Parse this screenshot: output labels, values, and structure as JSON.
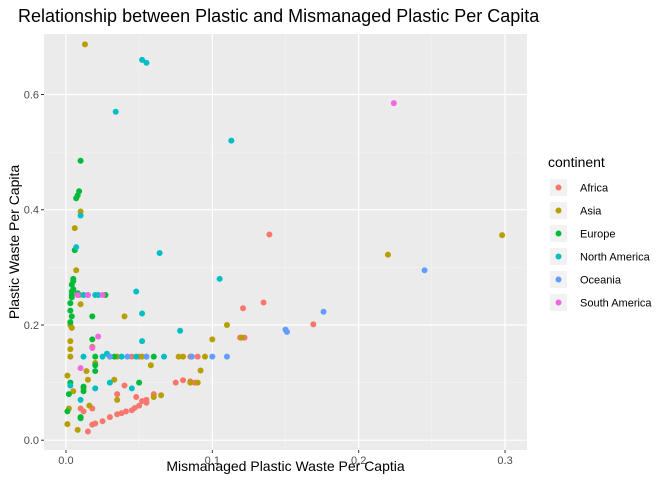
{
  "chart_data": {
    "type": "scatter",
    "title": "Relationship between Plastic and Mismanaged Plastic Per Capita",
    "xlabel": "Mismanaged Plastic Waste Per Captia",
    "ylabel": "Plastic Waste Per Capita",
    "xlim": [
      -0.015,
      0.315
    ],
    "ylim": [
      -0.017,
      0.705
    ],
    "x_ticks": [
      0.0,
      0.1,
      0.2,
      0.3
    ],
    "x_tick_labels": [
      "0.0",
      "0.1",
      "0.2",
      "0.3"
    ],
    "y_ticks": [
      0.0,
      0.2,
      0.4,
      0.6
    ],
    "y_tick_labels": [
      "0.0",
      "0.2",
      "0.4",
      "0.6"
    ],
    "grid": true,
    "legend": {
      "title": "continent",
      "position": "right"
    },
    "series": [
      {
        "name": "Africa",
        "color": "#F8766D",
        "points": [
          [
            0.139,
            0.357
          ],
          [
            0.135,
            0.239
          ],
          [
            0.121,
            0.229
          ],
          [
            0.169,
            0.201
          ],
          [
            0.119,
            0.178
          ],
          [
            0.122,
            0.178
          ],
          [
            0.02,
            0.029
          ],
          [
            0.025,
            0.033
          ],
          [
            0.03,
            0.04
          ],
          [
            0.035,
            0.045
          ],
          [
            0.038,
            0.047
          ],
          [
            0.041,
            0.05
          ],
          [
            0.045,
            0.052
          ],
          [
            0.047,
            0.056
          ],
          [
            0.05,
            0.06
          ],
          [
            0.052,
            0.068
          ],
          [
            0.055,
            0.07
          ],
          [
            0.048,
            0.075
          ],
          [
            0.055,
            0.065
          ],
          [
            0.06,
            0.08
          ],
          [
            0.075,
            0.1
          ],
          [
            0.08,
            0.104
          ],
          [
            0.085,
            0.102
          ],
          [
            0.088,
            0.1
          ],
          [
            0.015,
            0.015
          ],
          [
            0.018,
            0.027
          ],
          [
            0.012,
            0.05
          ],
          [
            0.01,
            0.055
          ],
          [
            0.035,
            0.08
          ],
          [
            0.04,
            0.095
          ],
          [
            0.045,
            0.145
          ],
          [
            0.05,
            0.145
          ],
          [
            0.055,
            0.145
          ],
          [
            0.085,
            0.145
          ],
          [
            0.09,
            0.145
          ],
          [
            0.018,
            0.055
          ]
        ]
      },
      {
        "name": "Asia",
        "color": "#B79F00",
        "points": [
          [
            0.013,
            0.687
          ],
          [
            0.298,
            0.356
          ],
          [
            0.22,
            0.322
          ],
          [
            0.01,
            0.397
          ],
          [
            0.006,
            0.368
          ],
          [
            0.007,
            0.295
          ],
          [
            0.009,
            0.252
          ],
          [
            0.01,
            0.236
          ],
          [
            0.003,
            0.2
          ],
          [
            0.004,
            0.195
          ],
          [
            0.003,
            0.172
          ],
          [
            0.003,
            0.158
          ],
          [
            0.003,
            0.145
          ],
          [
            0.001,
            0.112
          ],
          [
            0.005,
            0.085
          ],
          [
            0.002,
            0.055
          ],
          [
            0.001,
            0.028
          ],
          [
            0.008,
            0.018
          ],
          [
            0.018,
            0.162
          ],
          [
            0.02,
            0.134
          ],
          [
            0.035,
            0.145
          ],
          [
            0.04,
            0.215
          ],
          [
            0.052,
            0.145
          ],
          [
            0.058,
            0.13
          ],
          [
            0.06,
            0.075
          ],
          [
            0.065,
            0.078
          ],
          [
            0.077,
            0.145
          ],
          [
            0.085,
            0.1
          ],
          [
            0.09,
            0.1
          ],
          [
            0.092,
            0.121
          ],
          [
            0.095,
            0.145
          ],
          [
            0.1,
            0.175
          ],
          [
            0.11,
            0.2
          ],
          [
            0.12,
            0.178
          ],
          [
            0.03,
            0.145
          ],
          [
            0.035,
            0.07
          ],
          [
            0.08,
            0.145
          ],
          [
            0.033,
            0.105
          ],
          [
            0.015,
            0.105
          ],
          [
            0.014,
            0.12
          ],
          [
            0.012,
            0.09
          ],
          [
            0.016,
            0.06
          ]
        ]
      },
      {
        "name": "Europe",
        "color": "#00BA38",
        "points": [
          [
            0.01,
            0.485
          ],
          [
            0.009,
            0.432
          ],
          [
            0.008,
            0.425
          ],
          [
            0.007,
            0.42
          ],
          [
            0.006,
            0.33
          ],
          [
            0.005,
            0.28
          ],
          [
            0.005,
            0.276
          ],
          [
            0.004,
            0.27
          ],
          [
            0.005,
            0.262
          ],
          [
            0.004,
            0.258
          ],
          [
            0.004,
            0.252
          ],
          [
            0.004,
            0.248
          ],
          [
            0.003,
            0.238
          ],
          [
            0.003,
            0.225
          ],
          [
            0.004,
            0.215
          ],
          [
            0.003,
            0.205
          ],
          [
            0.008,
            0.255
          ],
          [
            0.027,
            0.252
          ],
          [
            0.018,
            0.215
          ],
          [
            0.018,
            0.175
          ],
          [
            0.02,
            0.145
          ],
          [
            0.02,
            0.13
          ],
          [
            0.02,
            0.12
          ],
          [
            0.012,
            0.093
          ],
          [
            0.012,
            0.085
          ],
          [
            0.003,
            0.1
          ],
          [
            0.002,
            0.08
          ],
          [
            0.001,
            0.05
          ],
          [
            0.01,
            0.04
          ],
          [
            0.01,
            0.038
          ],
          [
            0.033,
            0.145
          ],
          [
            0.06,
            0.145
          ],
          [
            0.05,
            0.1
          ]
        ]
      },
      {
        "name": "North America",
        "color": "#00BFC4",
        "points": [
          [
            0.052,
            0.66
          ],
          [
            0.055,
            0.655
          ],
          [
            0.034,
            0.57
          ],
          [
            0.113,
            0.52
          ],
          [
            0.064,
            0.325
          ],
          [
            0.105,
            0.28
          ],
          [
            0.048,
            0.258
          ],
          [
            0.052,
            0.22
          ],
          [
            0.078,
            0.19
          ],
          [
            0.052,
            0.172
          ],
          [
            0.01,
            0.39
          ],
          [
            0.007,
            0.335
          ],
          [
            0.012,
            0.252
          ],
          [
            0.015,
            0.252
          ],
          [
            0.02,
            0.252
          ],
          [
            0.022,
            0.252
          ],
          [
            0.01,
            0.07
          ],
          [
            0.02,
            0.09
          ],
          [
            0.03,
            0.1
          ],
          [
            0.045,
            0.09
          ],
          [
            0.025,
            0.145
          ],
          [
            0.038,
            0.145
          ],
          [
            0.048,
            0.145
          ],
          [
            0.067,
            0.145
          ],
          [
            0.012,
            0.145
          ],
          [
            0.003,
            0.095
          ],
          [
            0.028,
            0.15
          ]
        ]
      },
      {
        "name": "Oceania",
        "color": "#619CFF",
        "points": [
          [
            0.245,
            0.295
          ],
          [
            0.176,
            0.223
          ],
          [
            0.15,
            0.192
          ],
          [
            0.151,
            0.188
          ],
          [
            0.11,
            0.145
          ],
          [
            0.1,
            0.145
          ],
          [
            0.086,
            0.145
          ],
          [
            0.055,
            0.145
          ],
          [
            0.042,
            0.145
          ],
          [
            0.03,
            0.145
          ]
        ]
      },
      {
        "name": "South America",
        "color": "#F564E3",
        "points": [
          [
            0.224,
            0.585
          ],
          [
            0.015,
            0.252
          ],
          [
            0.025,
            0.252
          ],
          [
            0.022,
            0.18
          ],
          [
            0.018,
            0.16
          ],
          [
            0.01,
            0.125
          ],
          [
            0.008,
            0.252
          ]
        ]
      }
    ]
  }
}
